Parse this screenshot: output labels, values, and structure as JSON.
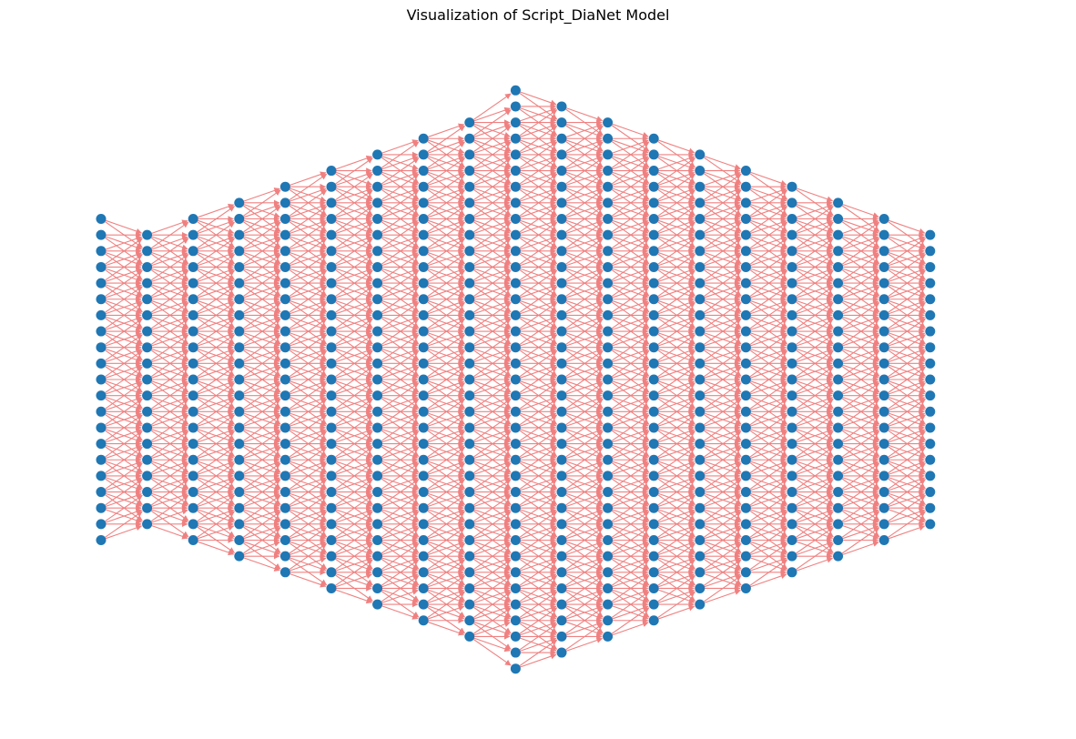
{
  "title": "Visualization of Script_DiaNet Model",
  "colors": {
    "node": "#1f77b4",
    "edge": "#f08080"
  },
  "network": {
    "layer_sizes": [
      21,
      19,
      21,
      23,
      25,
      27,
      29,
      31,
      33,
      37,
      35,
      33,
      31,
      29,
      27,
      25,
      23,
      21,
      19
    ],
    "edges": "each node connects to the nodes in the next layer at relative indices -2..+2 (centered alignment)"
  }
}
